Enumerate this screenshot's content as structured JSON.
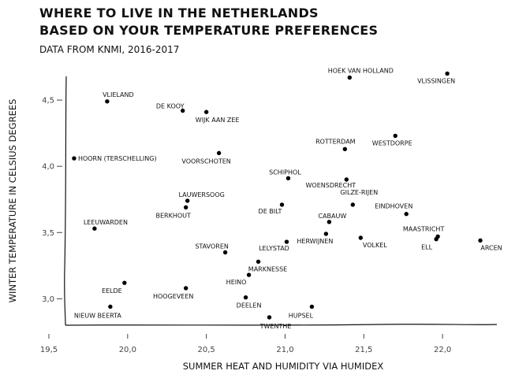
{
  "chart_data": {
    "type": "scatter",
    "title_lines": [
      "WHERE TO LIVE IN THE NETHERLANDS",
      "BASED ON YOUR TEMPERATURE PREFERENCES"
    ],
    "subtitle": "DATA FROM KNMI, 2016-2017",
    "xlabel": "SUMMER HEAT AND HUMIDITY VIA HUMIDEX",
    "ylabel": "WINTER TEMPERATURE IN CELSIUS DEGREES",
    "xlim": [
      19.5,
      22.3
    ],
    "ylim": [
      2.8,
      4.78
    ],
    "xticks": [
      19.5,
      20.0,
      20.5,
      21.0,
      21.5,
      22.0
    ],
    "xtick_labels": [
      "19,5",
      "20,0",
      "20,5",
      "21,0",
      "21,5",
      "22,0"
    ],
    "yticks": [
      3.0,
      3.5,
      4.0,
      4.5
    ],
    "ytick_labels": [
      "3,0",
      "3,5",
      "4,0",
      "4,5"
    ],
    "grid": false,
    "points": [
      {
        "label": "HOEK VAN HOLLAND",
        "x": 21.41,
        "y": 4.67
      },
      {
        "label": "VLISSINGEN",
        "x": 22.03,
        "y": 4.7
      },
      {
        "label": "VLIELAND",
        "x": 19.87,
        "y": 4.49
      },
      {
        "label": "DE KOOY",
        "x": 20.35,
        "y": 4.42
      },
      {
        "label": "WIJK AAN ZEE",
        "x": 20.5,
        "y": 4.41
      },
      {
        "label": "ROTTERDAM",
        "x": 21.38,
        "y": 4.13
      },
      {
        "label": "WESTDORPE",
        "x": 21.7,
        "y": 4.23
      },
      {
        "label": "HOORN (TERSCHELLING)",
        "x": 19.66,
        "y": 4.06
      },
      {
        "label": "VOORSCHOTEN",
        "x": 20.58,
        "y": 4.1
      },
      {
        "label": "SCHIPHOL",
        "x": 21.02,
        "y": 3.91
      },
      {
        "label": "WOENSDRECHT",
        "x": 21.39,
        "y": 3.9
      },
      {
        "label": "LAUWERSOOG",
        "x": 20.38,
        "y": 3.74
      },
      {
        "label": "BERKHOUT",
        "x": 20.37,
        "y": 3.69
      },
      {
        "label": "DE BILT",
        "x": 20.98,
        "y": 3.71
      },
      {
        "label": "GILZE-RIJEN",
        "x": 21.43,
        "y": 3.71
      },
      {
        "label": "EINDHOVEN",
        "x": 21.77,
        "y": 3.64
      },
      {
        "label": "CABAUW",
        "x": 21.28,
        "y": 3.58
      },
      {
        "label": "LEEUWARDEN",
        "x": 19.79,
        "y": 3.53
      },
      {
        "label": "MAASTRICHT",
        "x": 21.97,
        "y": 3.47
      },
      {
        "label": "ELL",
        "x": 21.96,
        "y": 3.45
      },
      {
        "label": "ARCEN",
        "x": 22.24,
        "y": 3.44
      },
      {
        "label": "HERWIJNEN",
        "x": 21.26,
        "y": 3.49
      },
      {
        "label": "VOLKEL",
        "x": 21.48,
        "y": 3.46
      },
      {
        "label": "LELYSTAD",
        "x": 21.01,
        "y": 3.43
      },
      {
        "label": "STAVOREN",
        "x": 20.62,
        "y": 3.35
      },
      {
        "label": "MARKNESSE",
        "x": 20.83,
        "y": 3.28
      },
      {
        "label": "HEINO",
        "x": 20.77,
        "y": 3.18
      },
      {
        "label": "EELDE",
        "x": 19.98,
        "y": 3.12
      },
      {
        "label": "HOOGEVEEN",
        "x": 20.37,
        "y": 3.08
      },
      {
        "label": "DEELEN",
        "x": 20.75,
        "y": 3.01
      },
      {
        "label": "NIEUW BEERTA",
        "x": 19.89,
        "y": 2.94
      },
      {
        "label": "HUPSEL",
        "x": 21.17,
        "y": 2.94
      },
      {
        "label": "TWENTHE",
        "x": 20.9,
        "y": 2.86
      }
    ]
  }
}
